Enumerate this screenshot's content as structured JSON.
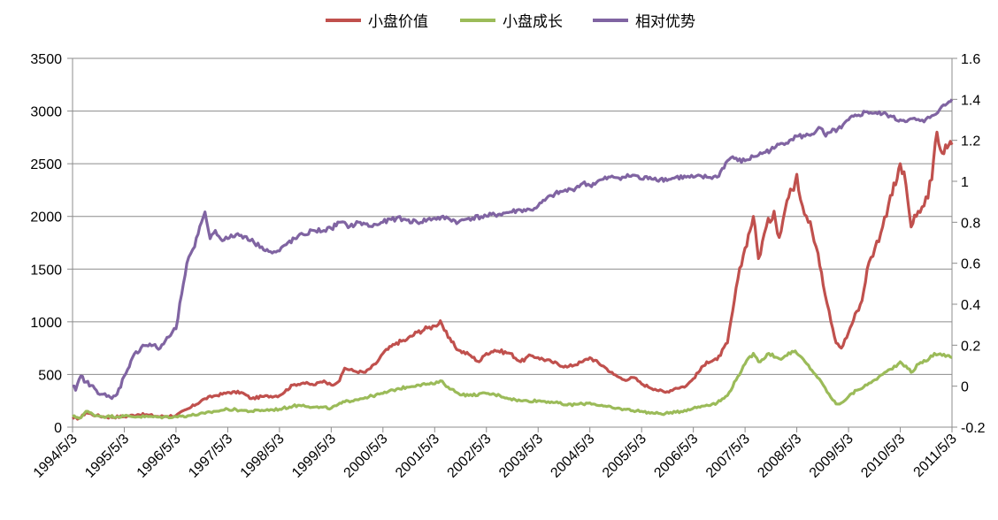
{
  "chart_data": {
    "type": "line",
    "title": "",
    "legend": {
      "position": "top"
    },
    "grid": {
      "horizontal": true,
      "vertical": false
    },
    "x_labels": [
      "1994/5/3",
      "1995/5/3",
      "1996/5/3",
      "1997/5/3",
      "1998/5/3",
      "1999/5/3",
      "2000/5/3",
      "2001/5/3",
      "2002/5/3",
      "2003/5/3",
      "2004/5/3",
      "2005/5/3",
      "2006/5/3",
      "2007/5/3",
      "2008/5/3",
      "2009/5/3",
      "2010/5/3",
      "2011/5/3"
    ],
    "y_left": {
      "min": 0,
      "max": 3500,
      "ticks": [
        "0",
        "500",
        "1000",
        "1500",
        "2000",
        "2500",
        "3000",
        "3500"
      ]
    },
    "y_right": {
      "min": -0.2,
      "max": 1.6,
      "ticks": [
        "-0.2",
        "0",
        "0.2",
        "0.4",
        "0.6",
        "0.8",
        "1",
        "1.2",
        "1.4",
        "1.6"
      ]
    },
    "series": [
      {
        "name": "小盘价值",
        "axis": "left",
        "color": "#c0504d",
        "points": [
          [
            1994.34,
            80
          ],
          [
            1994.5,
            90
          ],
          [
            1994.6,
            140
          ],
          [
            1994.8,
            110
          ],
          [
            1995.0,
            95
          ],
          [
            1995.34,
            100
          ],
          [
            1995.6,
            120
          ],
          [
            1995.8,
            115
          ],
          [
            1996.0,
            100
          ],
          [
            1996.34,
            110
          ],
          [
            1996.6,
            180
          ],
          [
            1996.9,
            270
          ],
          [
            1997.1,
            300
          ],
          [
            1997.3,
            320
          ],
          [
            1997.34,
            330
          ],
          [
            1997.6,
            330
          ],
          [
            1997.8,
            270
          ],
          [
            1998.0,
            290
          ],
          [
            1998.34,
            300
          ],
          [
            1998.6,
            400
          ],
          [
            1998.8,
            420
          ],
          [
            1999.0,
            400
          ],
          [
            1999.2,
            440
          ],
          [
            1999.34,
            400
          ],
          [
            1999.5,
            440
          ],
          [
            1999.6,
            560
          ],
          [
            1999.8,
            530
          ],
          [
            2000.0,
            520
          ],
          [
            2000.2,
            600
          ],
          [
            2000.34,
            700
          ],
          [
            2000.6,
            800
          ],
          [
            2000.8,
            830
          ],
          [
            2001.0,
            900
          ],
          [
            2001.2,
            940
          ],
          [
            2001.34,
            960
          ],
          [
            2001.45,
            1010
          ],
          [
            2001.6,
            850
          ],
          [
            2001.8,
            730
          ],
          [
            2002.0,
            690
          ],
          [
            2002.2,
            620
          ],
          [
            2002.34,
            700
          ],
          [
            2002.5,
            730
          ],
          [
            2002.8,
            700
          ],
          [
            2003.0,
            620
          ],
          [
            2003.2,
            680
          ],
          [
            2003.34,
            660
          ],
          [
            2003.6,
            620
          ],
          [
            2003.9,
            570
          ],
          [
            2004.2,
            620
          ],
          [
            2004.34,
            660
          ],
          [
            2004.6,
            580
          ],
          [
            2004.8,
            500
          ],
          [
            2005.0,
            450
          ],
          [
            2005.2,
            470
          ],
          [
            2005.34,
            410
          ],
          [
            2005.6,
            360
          ],
          [
            2005.8,
            330
          ],
          [
            2006.0,
            370
          ],
          [
            2006.2,
            390
          ],
          [
            2006.34,
            460
          ],
          [
            2006.6,
            620
          ],
          [
            2006.8,
            640
          ],
          [
            2007.0,
            800
          ],
          [
            2007.1,
            1100
          ],
          [
            2007.2,
            1400
          ],
          [
            2007.34,
            1700
          ],
          [
            2007.5,
            2000
          ],
          [
            2007.6,
            1600
          ],
          [
            2007.75,
            1900
          ],
          [
            2007.9,
            2050
          ],
          [
            2008.0,
            1800
          ],
          [
            2008.15,
            2150
          ],
          [
            2008.25,
            2250
          ],
          [
            2008.34,
            2400
          ],
          [
            2008.45,
            2100
          ],
          [
            2008.6,
            1950
          ],
          [
            2008.75,
            1650
          ],
          [
            2008.85,
            1350
          ],
          [
            2009.0,
            1000
          ],
          [
            2009.1,
            800
          ],
          [
            2009.2,
            750
          ],
          [
            2009.34,
            900
          ],
          [
            2009.5,
            1100
          ],
          [
            2009.6,
            1200
          ],
          [
            2009.7,
            1500
          ],
          [
            2009.85,
            1700
          ],
          [
            2010.0,
            1900
          ],
          [
            2010.15,
            2200
          ],
          [
            2010.25,
            2300
          ],
          [
            2010.34,
            2500
          ],
          [
            2010.45,
            2300
          ],
          [
            2010.55,
            1900
          ],
          [
            2010.65,
            2000
          ],
          [
            2010.8,
            2100
          ],
          [
            2010.95,
            2350
          ],
          [
            2011.05,
            2800
          ],
          [
            2011.15,
            2600
          ],
          [
            2011.25,
            2650
          ],
          [
            2011.34,
            2680
          ]
        ]
      },
      {
        "name": "小盘成长",
        "axis": "left",
        "color": "#9bbb59",
        "points": [
          [
            1994.34,
            100
          ],
          [
            1994.5,
            90
          ],
          [
            1994.6,
            150
          ],
          [
            1994.8,
            110
          ],
          [
            1995.0,
            100
          ],
          [
            1995.34,
            105
          ],
          [
            1995.6,
            100
          ],
          [
            1995.8,
            100
          ],
          [
            1996.0,
            95
          ],
          [
            1996.34,
            100
          ],
          [
            1996.6,
            110
          ],
          [
            1996.9,
            130
          ],
          [
            1997.1,
            150
          ],
          [
            1997.34,
            170
          ],
          [
            1997.6,
            160
          ],
          [
            1997.8,
            150
          ],
          [
            1998.0,
            160
          ],
          [
            1998.34,
            170
          ],
          [
            1998.6,
            200
          ],
          [
            1998.8,
            210
          ],
          [
            1999.0,
            190
          ],
          [
            1999.34,
            180
          ],
          [
            1999.6,
            240
          ],
          [
            1999.8,
            260
          ],
          [
            2000.0,
            280
          ],
          [
            2000.34,
            320
          ],
          [
            2000.6,
            360
          ],
          [
            2000.8,
            380
          ],
          [
            2001.0,
            400
          ],
          [
            2001.2,
            410
          ],
          [
            2001.34,
            410
          ],
          [
            2001.45,
            440
          ],
          [
            2001.6,
            380
          ],
          [
            2001.8,
            320
          ],
          [
            2002.0,
            300
          ],
          [
            2002.34,
            320
          ],
          [
            2002.6,
            300
          ],
          [
            2002.8,
            270
          ],
          [
            2003.0,
            250
          ],
          [
            2003.34,
            250
          ],
          [
            2003.6,
            240
          ],
          [
            2003.9,
            210
          ],
          [
            2004.2,
            220
          ],
          [
            2004.34,
            230
          ],
          [
            2004.6,
            200
          ],
          [
            2004.8,
            180
          ],
          [
            2005.0,
            170
          ],
          [
            2005.34,
            150
          ],
          [
            2005.6,
            130
          ],
          [
            2005.8,
            130
          ],
          [
            2006.0,
            140
          ],
          [
            2006.34,
            180
          ],
          [
            2006.6,
            210
          ],
          [
            2006.8,
            230
          ],
          [
            2007.0,
            300
          ],
          [
            2007.2,
            480
          ],
          [
            2007.34,
            600
          ],
          [
            2007.5,
            700
          ],
          [
            2007.6,
            620
          ],
          [
            2007.8,
            700
          ],
          [
            2008.0,
            650
          ],
          [
            2008.15,
            680
          ],
          [
            2008.25,
            720
          ],
          [
            2008.34,
            700
          ],
          [
            2008.5,
            620
          ],
          [
            2008.7,
            500
          ],
          [
            2008.85,
            400
          ],
          [
            2009.0,
            280
          ],
          [
            2009.1,
            220
          ],
          [
            2009.2,
            230
          ],
          [
            2009.34,
            290
          ],
          [
            2009.5,
            350
          ],
          [
            2009.7,
            400
          ],
          [
            2009.85,
            450
          ],
          [
            2010.0,
            500
          ],
          [
            2010.15,
            550
          ],
          [
            2010.3,
            600
          ],
          [
            2010.34,
            620
          ],
          [
            2010.45,
            580
          ],
          [
            2010.55,
            520
          ],
          [
            2010.7,
            600
          ],
          [
            2010.9,
            650
          ],
          [
            2011.0,
            700
          ],
          [
            2011.15,
            680
          ],
          [
            2011.25,
            680
          ],
          [
            2011.34,
            660
          ]
        ]
      },
      {
        "name": "相对优势",
        "axis": "right",
        "color": "#8064a2",
        "points": [
          [
            1994.34,
            0.0
          ],
          [
            1994.4,
            -0.02
          ],
          [
            1994.5,
            0.05
          ],
          [
            1994.6,
            0.02
          ],
          [
            1994.8,
            -0.02
          ],
          [
            1995.0,
            -0.05
          ],
          [
            1995.1,
            -0.06
          ],
          [
            1995.2,
            -0.04
          ],
          [
            1995.34,
            0.05
          ],
          [
            1995.5,
            0.14
          ],
          [
            1995.7,
            0.2
          ],
          [
            1995.9,
            0.2
          ],
          [
            1996.0,
            0.18
          ],
          [
            1996.2,
            0.24
          ],
          [
            1996.34,
            0.28
          ],
          [
            1996.45,
            0.45
          ],
          [
            1996.55,
            0.6
          ],
          [
            1996.7,
            0.68
          ],
          [
            1996.8,
            0.78
          ],
          [
            1996.9,
            0.85
          ],
          [
            1997.0,
            0.72
          ],
          [
            1997.1,
            0.76
          ],
          [
            1997.2,
            0.72
          ],
          [
            1997.34,
            0.72
          ],
          [
            1997.5,
            0.74
          ],
          [
            1997.7,
            0.73
          ],
          [
            1997.85,
            0.7
          ],
          [
            1998.0,
            0.68
          ],
          [
            1998.2,
            0.65
          ],
          [
            1998.34,
            0.66
          ],
          [
            1998.5,
            0.7
          ],
          [
            1998.8,
            0.74
          ],
          [
            1999.0,
            0.76
          ],
          [
            1999.2,
            0.76
          ],
          [
            1999.34,
            0.77
          ],
          [
            1999.5,
            0.8
          ],
          [
            1999.7,
            0.78
          ],
          [
            1999.9,
            0.8
          ],
          [
            2000.1,
            0.78
          ],
          [
            2000.34,
            0.8
          ],
          [
            2000.6,
            0.82
          ],
          [
            2000.8,
            0.81
          ],
          [
            2001.0,
            0.8
          ],
          [
            2001.34,
            0.82
          ],
          [
            2001.6,
            0.82
          ],
          [
            2001.8,
            0.8
          ],
          [
            2002.0,
            0.82
          ],
          [
            2002.34,
            0.83
          ],
          [
            2002.6,
            0.84
          ],
          [
            2002.8,
            0.85
          ],
          [
            2003.0,
            0.86
          ],
          [
            2003.2,
            0.86
          ],
          [
            2003.34,
            0.88
          ],
          [
            2003.6,
            0.93
          ],
          [
            2003.8,
            0.95
          ],
          [
            2004.0,
            0.96
          ],
          [
            2004.2,
            0.99
          ],
          [
            2004.34,
            0.98
          ],
          [
            2004.6,
            1.01
          ],
          [
            2004.8,
            1.02
          ],
          [
            2005.0,
            1.02
          ],
          [
            2005.2,
            1.03
          ],
          [
            2005.34,
            1.01
          ],
          [
            2005.5,
            1.02
          ],
          [
            2005.7,
            1.01
          ],
          [
            2005.9,
            1.01
          ],
          [
            2006.0,
            1.02
          ],
          [
            2006.2,
            1.02
          ],
          [
            2006.34,
            1.02
          ],
          [
            2006.6,
            1.02
          ],
          [
            2006.8,
            1.02
          ],
          [
            2007.0,
            1.1
          ],
          [
            2007.1,
            1.12
          ],
          [
            2007.2,
            1.1
          ],
          [
            2007.34,
            1.1
          ],
          [
            2007.5,
            1.12
          ],
          [
            2007.7,
            1.14
          ],
          [
            2007.9,
            1.16
          ],
          [
            2008.0,
            1.18
          ],
          [
            2008.2,
            1.2
          ],
          [
            2008.34,
            1.22
          ],
          [
            2008.5,
            1.22
          ],
          [
            2008.7,
            1.24
          ],
          [
            2008.8,
            1.26
          ],
          [
            2008.9,
            1.22
          ],
          [
            2009.0,
            1.24
          ],
          [
            2009.2,
            1.26
          ],
          [
            2009.34,
            1.3
          ],
          [
            2009.5,
            1.32
          ],
          [
            2009.7,
            1.34
          ],
          [
            2009.9,
            1.33
          ],
          [
            2010.0,
            1.33
          ],
          [
            2010.15,
            1.32
          ],
          [
            2010.25,
            1.3
          ],
          [
            2010.34,
            1.3
          ],
          [
            2010.5,
            1.3
          ],
          [
            2010.65,
            1.3
          ],
          [
            2010.8,
            1.29
          ],
          [
            2010.95,
            1.32
          ],
          [
            2011.1,
            1.35
          ],
          [
            2011.25,
            1.38
          ],
          [
            2011.34,
            1.4
          ]
        ]
      }
    ]
  }
}
